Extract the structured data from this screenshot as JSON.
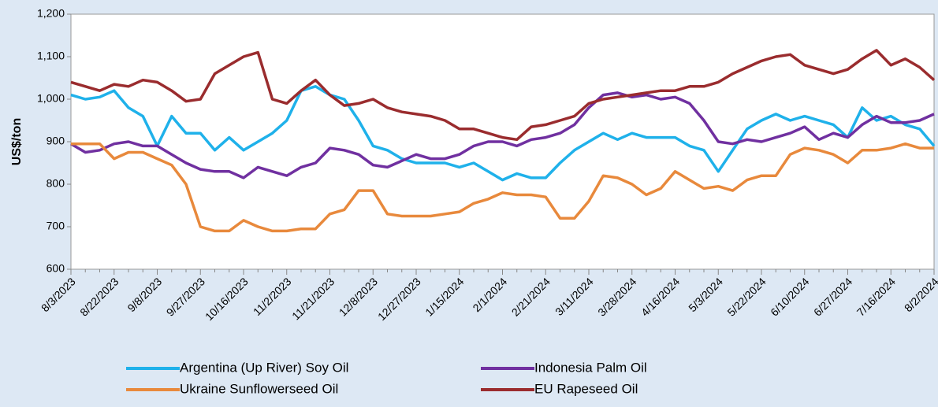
{
  "chart_data": {
    "type": "line",
    "y_label": "US$/ton",
    "categories": [
      "8/3/2023",
      null,
      null,
      "8/22/2023",
      null,
      null,
      "9/8/2023",
      null,
      null,
      "9/27/2023",
      null,
      null,
      "10/16/2023",
      null,
      null,
      "11/2/2023",
      null,
      null,
      "11/21/2023",
      null,
      null,
      "12/8/2023",
      null,
      null,
      "12/27/2023",
      null,
      null,
      "1/15/2024",
      null,
      null,
      "2/1/2024",
      null,
      null,
      "2/21/2024",
      null,
      null,
      "3/11/2024",
      null,
      null,
      "3/28/2024",
      null,
      null,
      "4/16/2024",
      null,
      null,
      "5/3/2024",
      null,
      null,
      "5/22/2024",
      null,
      null,
      "6/10/2024",
      null,
      null,
      "6/27/2024",
      null,
      null,
      "7/16/2024",
      null,
      null,
      "8/2/2024"
    ],
    "series": [
      {
        "name": "Argentina (Up River) Soy Oil",
        "color": "#1fb1ea",
        "values": [
          1010,
          1000,
          1005,
          1020,
          980,
          960,
          890,
          960,
          920,
          920,
          880,
          910,
          880,
          900,
          920,
          950,
          1020,
          1030,
          1010,
          1000,
          950,
          890,
          880,
          860,
          850,
          850,
          850,
          840,
          850,
          830,
          810,
          825,
          815,
          815,
          850,
          880,
          900,
          920,
          905,
          920,
          910,
          910,
          910,
          890,
          880,
          830,
          880,
          930,
          950,
          965,
          950,
          960,
          950,
          940,
          910,
          980,
          950,
          960,
          940,
          930,
          890
        ]
      },
      {
        "name": "Indonesia Palm Oil",
        "color": "#7030a0",
        "values": [
          895,
          875,
          880,
          895,
          900,
          890,
          890,
          870,
          850,
          835,
          830,
          830,
          815,
          840,
          830,
          820,
          840,
          850,
          885,
          880,
          870,
          845,
          840,
          855,
          870,
          860,
          860,
          870,
          890,
          900,
          900,
          890,
          905,
          910,
          920,
          940,
          980,
          1010,
          1015,
          1005,
          1010,
          1000,
          1005,
          990,
          950,
          900,
          895,
          905,
          900,
          910,
          920,
          935,
          905,
          920,
          910,
          940,
          960,
          945,
          945,
          950,
          965
        ]
      },
      {
        "name": "Ukraine Sunflowerseed Oil",
        "color": "#e8893c",
        "values": [
          895,
          895,
          895,
          860,
          875,
          875,
          860,
          845,
          800,
          700,
          690,
          690,
          715,
          700,
          690,
          690,
          695,
          695,
          730,
          740,
          785,
          785,
          730,
          725,
          725,
          725,
          730,
          735,
          755,
          765,
          780,
          775,
          775,
          770,
          720,
          720,
          760,
          820,
          815,
          800,
          775,
          790,
          830,
          810,
          790,
          795,
          785,
          810,
          820,
          820,
          870,
          885,
          880,
          870,
          850,
          880,
          880,
          885,
          895,
          885,
          885
        ]
      },
      {
        "name": "EU Rapeseed Oil",
        "color": "#9a2c2e",
        "values": [
          1040,
          1030,
          1020,
          1035,
          1030,
          1045,
          1040,
          1020,
          995,
          1000,
          1060,
          1080,
          1100,
          1110,
          1000,
          990,
          1020,
          1045,
          1010,
          985,
          990,
          1000,
          980,
          970,
          965,
          960,
          950,
          930,
          930,
          920,
          910,
          905,
          935,
          940,
          950,
          960,
          990,
          1000,
          1005,
          1010,
          1015,
          1020,
          1020,
          1030,
          1030,
          1040,
          1060,
          1075,
          1090,
          1100,
          1105,
          1080,
          1070,
          1060,
          1070,
          1095,
          1115,
          1080,
          1095,
          1075,
          1045
        ]
      }
    ],
    "ylim": [
      600,
      1200
    ],
    "yticks": [
      600,
      700,
      800,
      900,
      {
        "value": 1000,
        "label": "1,000"
      },
      {
        "value": 1100,
        "label": "1,100"
      },
      {
        "value": 1200,
        "label": "1,200"
      }
    ],
    "grid": false,
    "legend": "bottom"
  }
}
